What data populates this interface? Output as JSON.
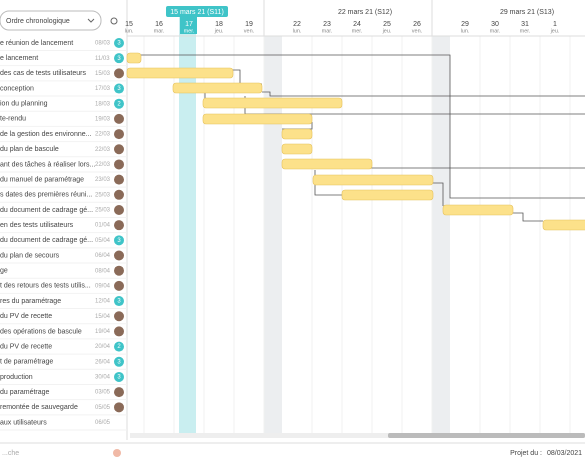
{
  "toolbar": {
    "sort": "Ordre chronologique"
  },
  "timeline": {
    "weeks": [
      {
        "label": "15 mars 21 (S11)",
        "current": true
      },
      {
        "label": "22 mars 21 (S12)",
        "current": false
      },
      {
        "label": "29 mars 21 (S13)",
        "current": false
      }
    ],
    "days": [
      {
        "num": "15",
        "name": "lun."
      },
      {
        "num": "16",
        "name": "mar."
      },
      {
        "num": "17",
        "name": "mer."
      },
      {
        "num": "18",
        "name": "jeu."
      },
      {
        "num": "19",
        "name": "ven."
      },
      {
        "num": "22",
        "name": "lun."
      },
      {
        "num": "23",
        "name": "mar."
      },
      {
        "num": "24",
        "name": "mer."
      },
      {
        "num": "25",
        "name": "jeu."
      },
      {
        "num": "26",
        "name": "ven."
      },
      {
        "num": "29",
        "name": "lun."
      },
      {
        "num": "30",
        "name": "mar."
      },
      {
        "num": "31",
        "name": "mer."
      },
      {
        "num": "1",
        "name": "jeu."
      }
    ]
  },
  "tasks": [
    {
      "name": "e réunion de lancement",
      "date": "08/03",
      "badge": "3"
    },
    {
      "name": "e lancement",
      "date": "11/03",
      "badge": "3"
    },
    {
      "name": "des cas de tests utilisateurs",
      "date": "15/03"
    },
    {
      "name": "conception",
      "date": "17/03",
      "badge": "3"
    },
    {
      "name": "ion du planning",
      "date": "18/03",
      "badge": "2"
    },
    {
      "name": "te-rendu",
      "date": "19/03"
    },
    {
      "name": "de la gestion des environne...",
      "date": "22/03"
    },
    {
      "name": "du plan de bascule",
      "date": "22/03"
    },
    {
      "name": "ant des tâches à réaliser lors...",
      "date": "22/03"
    },
    {
      "name": "du manuel de paramétrage",
      "date": "23/03"
    },
    {
      "name": "s dates des premières réuni...",
      "date": "25/03"
    },
    {
      "name": "du document de cadrage gé...",
      "date": "25/03"
    },
    {
      "name": "en des tests utilisateurs",
      "date": "01/04"
    },
    {
      "name": "du document de cadrage gé...",
      "date": "05/04",
      "badge": "3"
    },
    {
      "name": "du plan de secours",
      "date": "06/04"
    },
    {
      "name": "ge",
      "date": "08/04"
    },
    {
      "name": "t des retours des tests utilis...",
      "date": "09/04"
    },
    {
      "name": "res du paramétrage",
      "date": "12/04",
      "badge": "3"
    },
    {
      "name": "du PV de recette",
      "date": "15/04"
    },
    {
      "name": "des opérations de bascule",
      "date": "19/04"
    },
    {
      "name": "du PV de recette",
      "date": "20/04",
      "badge": "2"
    },
    {
      "name": "t de paramétrage",
      "date": "26/04",
      "badge": "3"
    },
    {
      "name": "production",
      "date": "30/04",
      "badge": "3"
    },
    {
      "name": "du paramétrage",
      "date": "03/05"
    },
    {
      "name": "remontée de sauvegarde",
      "date": "05/05"
    },
    {
      "name": "aux utilisateurs",
      "date": "06/05"
    }
  ],
  "footer": {
    "search": "...che",
    "project_label": "Projet du :",
    "project_date": "08/03/2021"
  }
}
